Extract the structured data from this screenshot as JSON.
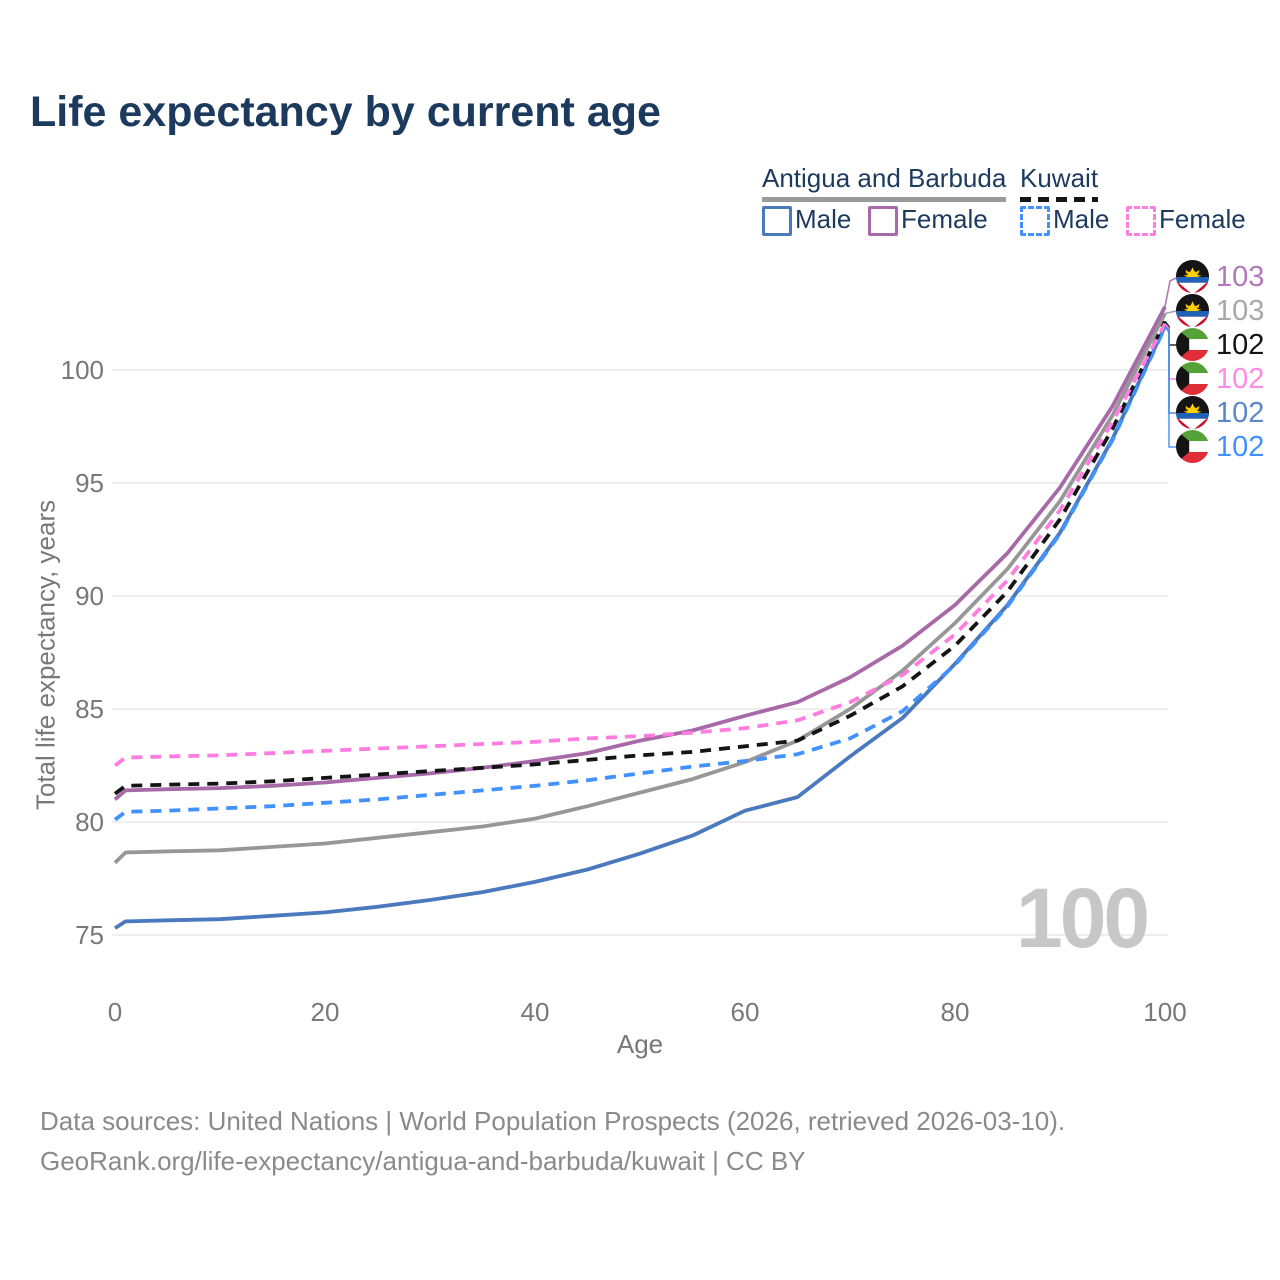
{
  "title": "Life expectancy by current age",
  "legend": {
    "groups": [
      {
        "label": "Antigua and Barbuda",
        "underline_style": "solid",
        "underline_color": "#9a9a9a",
        "items": [
          {
            "label": "Male",
            "color": "#4a79bd",
            "dashed": false
          },
          {
            "label": "Female",
            "color": "#a869a9",
            "dashed": false
          }
        ]
      },
      {
        "label": "Kuwait",
        "underline_style": "dashed",
        "underline_color": "#141414",
        "items": [
          {
            "label": "Male",
            "color": "#4191ff",
            "dashed": true
          },
          {
            "label": "Female",
            "color": "#ff7ce0",
            "dashed": true
          }
        ]
      }
    ]
  },
  "chart_data": {
    "type": "line",
    "title": "Life expectancy by current age",
    "xlabel": "Age",
    "ylabel": "Total life expectancy, years",
    "xlim": [
      0,
      100
    ],
    "ylim": [
      75,
      100
    ],
    "xticks": [
      0,
      20,
      40,
      60,
      80,
      100
    ],
    "yticks": [
      75,
      80,
      85,
      90,
      95,
      100
    ],
    "grid": "horizontal",
    "legend_position": "top-right",
    "watermark": "100",
    "x": [
      0,
      1,
      5,
      10,
      15,
      20,
      25,
      30,
      35,
      40,
      45,
      50,
      55,
      60,
      65,
      70,
      75,
      80,
      85,
      90,
      95,
      100
    ],
    "series": [
      {
        "name": "Antigua and Barbuda — Female",
        "country": "Antigua and Barbuda",
        "sex": "Female",
        "color": "#a869a9",
        "dashed": false,
        "end_value_label": "103",
        "values": [
          81.0,
          81.4,
          81.45,
          81.5,
          81.6,
          81.75,
          81.95,
          82.15,
          82.4,
          82.7,
          83.05,
          83.6,
          84.05,
          84.7,
          85.3,
          86.4,
          87.8,
          89.6,
          91.9,
          94.8,
          98.4,
          102.8
        ]
      },
      {
        "name": "Antigua and Barbuda — Both sexes",
        "country": "Antigua and Barbuda",
        "sex": "Both sexes",
        "color": "#979797",
        "dashed": false,
        "end_value_label": "103",
        "values": [
          78.2,
          78.65,
          78.7,
          78.75,
          78.9,
          79.05,
          79.3,
          79.55,
          79.8,
          80.15,
          80.7,
          81.3,
          81.9,
          82.65,
          83.6,
          85.0,
          86.7,
          88.8,
          91.2,
          94.2,
          98.0,
          102.5
        ]
      },
      {
        "name": "Antigua and Barbuda — Male",
        "country": "Antigua and Barbuda",
        "sex": "Male",
        "color": "#4a79bd",
        "dashed": false,
        "end_value_label": "102",
        "values": [
          75.3,
          75.6,
          75.65,
          75.7,
          75.85,
          76.0,
          76.25,
          76.55,
          76.9,
          77.35,
          77.9,
          78.6,
          79.4,
          80.5,
          81.1,
          82.9,
          84.6,
          87.0,
          89.6,
          92.8,
          96.95,
          101.95
        ]
      },
      {
        "name": "Kuwait — Female",
        "country": "Kuwait",
        "sex": "Female",
        "color": "#ff7ce0",
        "dashed": true,
        "end_value_label": "102",
        "values": [
          82.5,
          82.85,
          82.9,
          82.95,
          83.05,
          83.15,
          83.25,
          83.35,
          83.45,
          83.55,
          83.7,
          83.8,
          83.95,
          84.15,
          84.5,
          85.3,
          86.5,
          88.3,
          90.7,
          93.8,
          97.7,
          102.05
        ]
      },
      {
        "name": "Kuwait — Both sexes",
        "country": "Kuwait",
        "sex": "Both sexes",
        "color": "#141414",
        "dashed": true,
        "end_value_label": "102",
        "values": [
          81.25,
          81.6,
          81.65,
          81.7,
          81.8,
          81.95,
          82.1,
          82.25,
          82.4,
          82.55,
          82.75,
          82.95,
          83.1,
          83.35,
          83.6,
          84.7,
          86.0,
          87.8,
          90.2,
          93.4,
          97.4,
          102.15
        ]
      },
      {
        "name": "Kuwait — Male",
        "country": "Kuwait",
        "sex": "Male",
        "color": "#4191ff",
        "dashed": true,
        "end_value_label": "102",
        "values": [
          80.1,
          80.45,
          80.5,
          80.6,
          80.7,
          80.85,
          81.0,
          81.2,
          81.4,
          81.6,
          81.85,
          82.15,
          82.45,
          82.7,
          83.0,
          83.7,
          84.9,
          86.95,
          89.55,
          92.75,
          96.9,
          101.9
        ]
      }
    ]
  },
  "end_labels": [
    {
      "value": "103",
      "flag": "antigua",
      "color": "#b279ba",
      "series_index": 0
    },
    {
      "value": "103",
      "flag": "antigua",
      "color": "#a8a8a8",
      "series_index": 1
    },
    {
      "value": "102",
      "flag": "kuwait",
      "color": "#141414",
      "series_index": 4
    },
    {
      "value": "102",
      "flag": "kuwait",
      "color": "#ff8ae2",
      "series_index": 3
    },
    {
      "value": "102",
      "flag": "antigua",
      "color": "#5c87c9",
      "series_index": 2
    },
    {
      "value": "102",
      "flag": "kuwait",
      "color": "#4191ff",
      "series_index": 5
    }
  ],
  "footer": {
    "line1": "Data sources: United Nations | World Population Prospects (2026, retrieved 2026-03-10).",
    "line2": "GeoRank.org/life-expectancy/antigua-and-barbuda/kuwait | CC BY"
  }
}
